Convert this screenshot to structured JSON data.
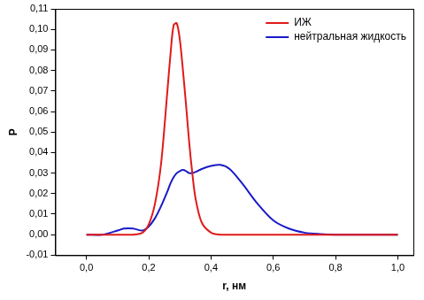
{
  "chart_data": {
    "type": "line",
    "x_label": "r, нм",
    "y_label": "P",
    "x": [
      0,
      0.05,
      0.1,
      0.12,
      0.15,
      0.18,
      0.2,
      0.22,
      0.24,
      0.26,
      0.27,
      0.28,
      0.29,
      0.3,
      0.31,
      0.32,
      0.33,
      0.34,
      0.35,
      0.37,
      0.4,
      0.43,
      0.46,
      0.5,
      0.55,
      0.6,
      0.65,
      0.7,
      0.75,
      0.8,
      0.9,
      1.0
    ],
    "series": [
      {
        "name": "ИЖ",
        "color": "#e01a1a",
        "values": [
          0,
          0,
          0,
          0,
          0,
          0.001,
          0.005,
          0.015,
          0.035,
          0.07,
          0.088,
          0.102,
          0.103,
          0.095,
          0.08,
          0.063,
          0.045,
          0.03,
          0.018,
          0.006,
          0.001,
          0,
          0,
          0,
          0,
          0,
          0,
          0,
          0,
          0,
          0,
          0
        ]
      },
      {
        "name": "нейтральная жидкость",
        "color": "#1a1ac8",
        "values": [
          0,
          0,
          0.002,
          0.003,
          0.003,
          0.002,
          0.004,
          0.008,
          0.014,
          0.021,
          0.025,
          0.028,
          0.03,
          0.031,
          0.0315,
          0.031,
          0.03,
          0.03,
          0.0305,
          0.032,
          0.0335,
          0.034,
          0.032,
          0.025,
          0.015,
          0.007,
          0.003,
          0.001,
          0.0003,
          0,
          0,
          0
        ]
      }
    ],
    "xlim": [
      -0.1,
      1.05
    ],
    "xticks": [
      {
        "value": 0,
        "label": "0,0"
      },
      {
        "value": 0.2,
        "label": "0,2"
      },
      {
        "value": 0.4,
        "label": "0,4"
      },
      {
        "value": 0.6,
        "label": "0,6"
      },
      {
        "value": 0.8,
        "label": "0,8"
      },
      {
        "value": 1.0,
        "label": "1,0"
      }
    ],
    "ylim": [
      -0.01,
      0.11
    ],
    "yticks": [
      {
        "value": -0.01,
        "label": "-0,01"
      },
      {
        "value": 0,
        "label": "0,00"
      },
      {
        "value": 0.01,
        "label": "0,01"
      },
      {
        "value": 0.02,
        "label": "0,02"
      },
      {
        "value": 0.03,
        "label": "0,03"
      },
      {
        "value": 0.04,
        "label": "0,04"
      },
      {
        "value": 0.05,
        "label": "0,05"
      },
      {
        "value": 0.06,
        "label": "0,06"
      },
      {
        "value": 0.07,
        "label": "0,07"
      },
      {
        "value": 0.08,
        "label": "0,08"
      },
      {
        "value": 0.09,
        "label": "0,09"
      },
      {
        "value": 0.1,
        "label": "0,10"
      },
      {
        "value": 0.11,
        "label": "0,11"
      }
    ],
    "grid": false,
    "legend": "upper right"
  }
}
